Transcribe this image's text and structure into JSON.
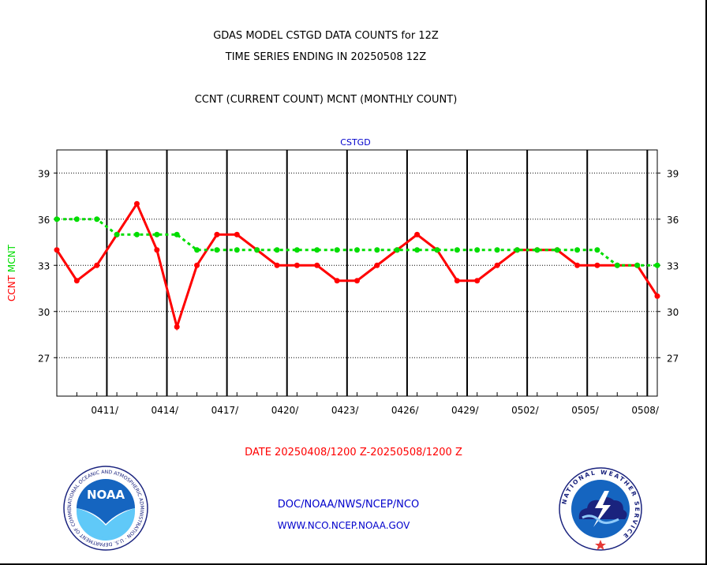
{
  "header": {
    "line1": "GDAS MODEL CSTGD DATA COUNTS for 12Z",
    "line2": "TIME SERIES ENDING IN 20250508 12Z",
    "line3": "CCNT (CURRENT COUNT) MCNT (MONTHLY COUNT)"
  },
  "footer": {
    "date_range": "DATE 20250408/1200 Z-20250508/1200 Z",
    "org": "DOC/NOAA/NWS/NCEP/NCO",
    "url": "WWW.NCO.NCEP.NOAA.GOV"
  },
  "logos": {
    "noaa_text": "NOAA",
    "noaa_ring": "NATIONAL OCEANIC AND ATMOSPHERIC ADMINISTRATION · U.S. DEPARTMENT OF COMMERCE",
    "nws_ring": "NATIONAL WEATHER SERVICE"
  },
  "colors": {
    "ccnt": "#ff0000",
    "mcnt": "#00dd00",
    "plot_title": "#0000cc",
    "footer_blue": "#0000cc",
    "date_red": "#ff0000"
  },
  "chart_data": {
    "type": "line",
    "title": "CSTGD",
    "ylabel_parts": [
      "CCNT",
      "MCNT"
    ],
    "x_ticks": [
      "0411/",
      "0414/",
      "0417/",
      "0420/",
      "0423/",
      "0426/",
      "0429/",
      "0502/",
      "0505/",
      "0508/"
    ],
    "y_ticks": [
      27,
      30,
      33,
      36,
      39
    ],
    "ylim": [
      24.5,
      40.5
    ],
    "xlim": [
      "2025-04-08",
      "2025-05-08"
    ],
    "grid": true,
    "series": [
      {
        "name": "CCNT",
        "color": "#ff0000",
        "x": [
          "2025-04-08",
          "2025-04-09",
          "2025-04-10",
          "2025-04-11",
          "2025-04-12",
          "2025-04-13",
          "2025-04-14",
          "2025-04-15",
          "2025-04-16",
          "2025-04-17",
          "2025-04-18",
          "2025-04-19",
          "2025-04-20",
          "2025-04-21",
          "2025-04-22",
          "2025-04-23",
          "2025-04-24",
          "2025-04-25",
          "2025-04-26",
          "2025-04-27",
          "2025-04-28",
          "2025-04-29",
          "2025-04-30",
          "2025-05-01",
          "2025-05-02",
          "2025-05-03",
          "2025-05-04",
          "2025-05-05",
          "2025-05-06",
          "2025-05-07",
          "2025-05-08"
        ],
        "values": [
          34,
          32,
          33,
          35,
          37,
          34,
          29,
          33,
          35,
          35,
          34,
          33,
          33,
          33,
          32,
          32,
          33,
          34,
          35,
          34,
          32,
          32,
          33,
          34,
          34,
          34,
          33,
          33,
          33,
          33,
          31
        ]
      },
      {
        "name": "MCNT",
        "color": "#00dd00",
        "x": [
          "2025-04-08",
          "2025-04-09",
          "2025-04-10",
          "2025-04-11",
          "2025-04-12",
          "2025-04-13",
          "2025-04-14",
          "2025-04-15",
          "2025-04-16",
          "2025-04-17",
          "2025-04-18",
          "2025-04-19",
          "2025-04-20",
          "2025-04-21",
          "2025-04-22",
          "2025-04-23",
          "2025-04-24",
          "2025-04-25",
          "2025-04-26",
          "2025-04-27",
          "2025-04-28",
          "2025-04-29",
          "2025-04-30",
          "2025-05-01",
          "2025-05-02",
          "2025-05-03",
          "2025-05-04",
          "2025-05-05",
          "2025-05-06",
          "2025-05-07",
          "2025-05-08"
        ],
        "values": [
          36,
          36,
          36,
          35,
          35,
          35,
          35,
          34,
          34,
          34,
          34,
          34,
          34,
          34,
          34,
          34,
          34,
          34,
          34,
          34,
          34,
          34,
          34,
          34,
          34,
          34,
          34,
          34,
          33,
          33,
          33
        ]
      }
    ]
  }
}
